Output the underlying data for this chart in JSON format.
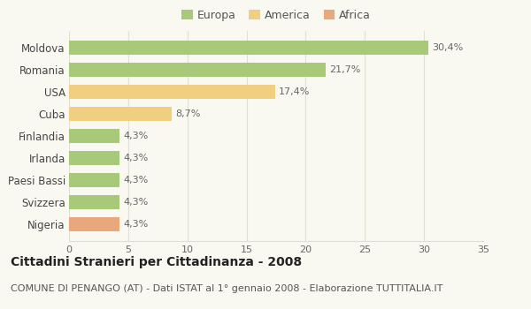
{
  "categories": [
    "Nigeria",
    "Svizzera",
    "Paesi Bassi",
    "Irlanda",
    "Finlandia",
    "Cuba",
    "USA",
    "Romania",
    "Moldova"
  ],
  "values": [
    4.3,
    4.3,
    4.3,
    4.3,
    4.3,
    8.7,
    17.4,
    21.7,
    30.4
  ],
  "labels": [
    "4,3%",
    "4,3%",
    "4,3%",
    "4,3%",
    "4,3%",
    "8,7%",
    "17,4%",
    "21,7%",
    "30,4%"
  ],
  "colors": [
    "#e8a87c",
    "#a8c87a",
    "#a8c87a",
    "#a8c87a",
    "#a8c87a",
    "#f0d080",
    "#f0d080",
    "#a8c87a",
    "#a8c87a"
  ],
  "legend": [
    {
      "label": "Europa",
      "color": "#a8c87a"
    },
    {
      "label": "America",
      "color": "#f0d080"
    },
    {
      "label": "Africa",
      "color": "#e8a87c"
    }
  ],
  "xlim": [
    0,
    35
  ],
  "xticks": [
    0,
    5,
    10,
    15,
    20,
    25,
    30,
    35
  ],
  "title": "Cittadini Stranieri per Cittadinanza - 2008",
  "subtitle": "COMUNE DI PENANGO (AT) - Dati ISTAT al 1° gennaio 2008 - Elaborazione TUTTITALIA.IT",
  "background_color": "#f9f9f2",
  "grid_color": "#e0dfd0",
  "bar_height": 0.65,
  "title_fontsize": 10,
  "subtitle_fontsize": 8,
  "label_fontsize": 8,
  "tick_fontsize": 8,
  "ylabel_fontsize": 8.5
}
